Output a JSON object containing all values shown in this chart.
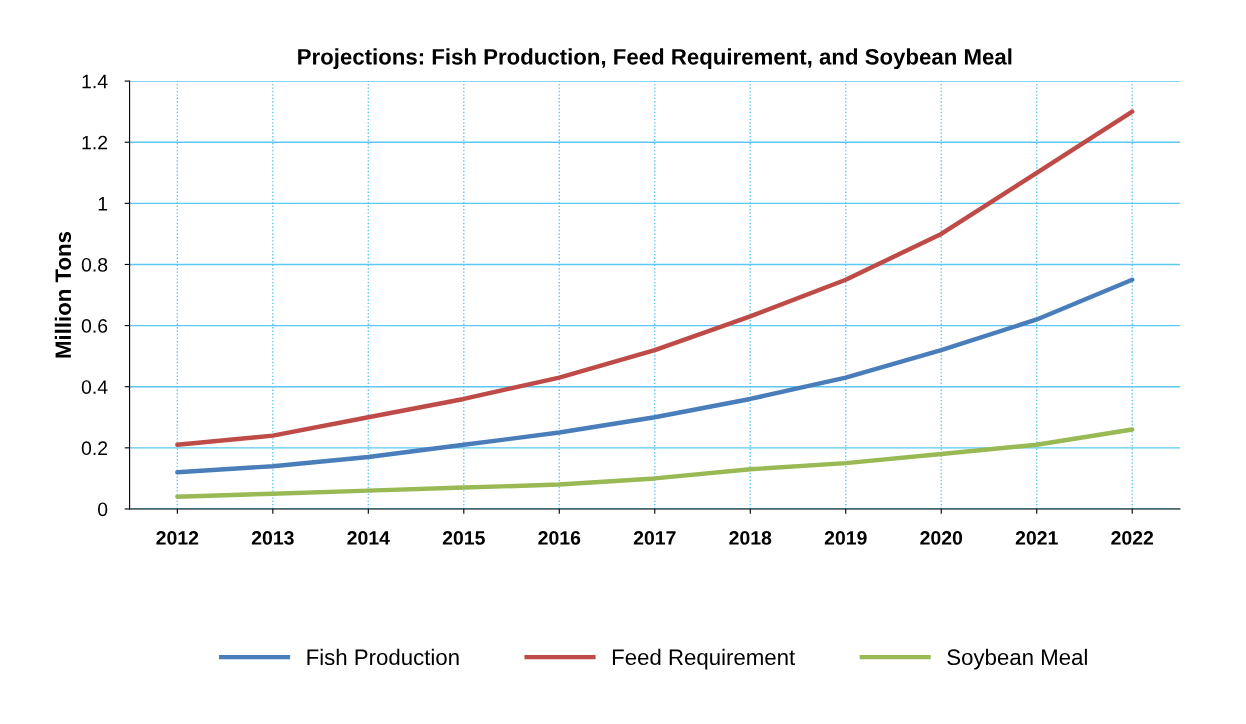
{
  "chart_data": {
    "type": "line",
    "title": "Projections: Fish Production, Feed Requirement, and Soybean Meal",
    "ylabel": "Million Tons",
    "categories": [
      "2012",
      "2013",
      "2014",
      "2015",
      "2016",
      "2017",
      "2018",
      "2019",
      "2020",
      "2021",
      "2022"
    ],
    "series": [
      {
        "name": "Fish Production",
        "color": "#4a7ebb",
        "values": [
          0.12,
          0.14,
          0.17,
          0.21,
          0.25,
          0.3,
          0.36,
          0.43,
          0.52,
          0.62,
          0.75
        ]
      },
      {
        "name": "Feed Requirement",
        "color": "#be4b48",
        "values": [
          0.21,
          0.24,
          0.3,
          0.36,
          0.43,
          0.52,
          0.63,
          0.75,
          0.9,
          1.1,
          1.3
        ]
      },
      {
        "name": "Soybean Meal",
        "color": "#98b954",
        "values": [
          0.04,
          0.05,
          0.06,
          0.07,
          0.08,
          0.1,
          0.13,
          0.15,
          0.18,
          0.21,
          0.26
        ]
      }
    ],
    "ylim": [
      0,
      1.4
    ],
    "yticks": [
      0,
      0.2,
      0.4,
      0.6,
      0.8,
      1,
      1.2,
      1.4
    ],
    "grid": true,
    "legend": "bottom",
    "marker": "none",
    "line_style": "solid"
  }
}
